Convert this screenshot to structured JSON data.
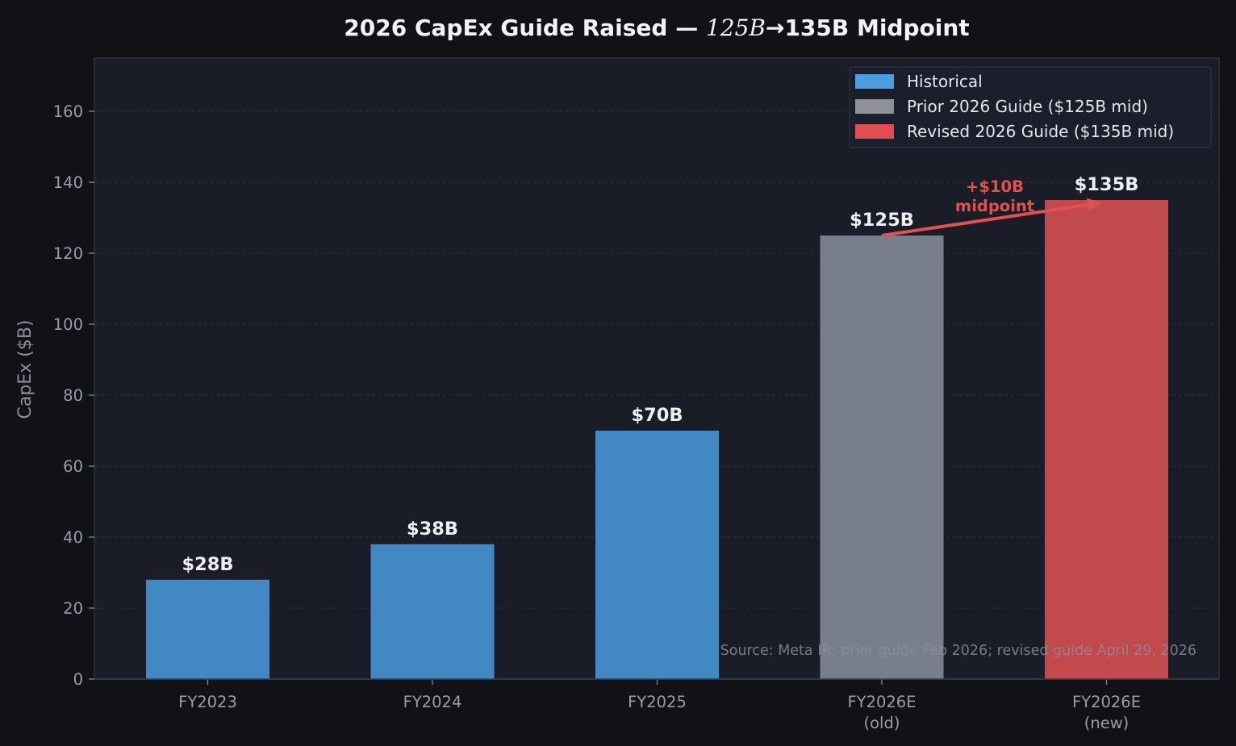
{
  "chart_data": {
    "type": "bar",
    "title": {
      "pre": "2026 CapEx Guide Raised — ",
      "math": "125B",
      "post": "→135B Midpoint"
    },
    "xlabel": "",
    "ylabel": "CapEx ($B)",
    "ylim": [
      0,
      175
    ],
    "yticks": [
      0,
      20,
      40,
      60,
      80,
      100,
      120,
      140,
      160
    ],
    "grid": "horizontal dashed",
    "legend_position": "top-right",
    "categories": [
      [
        "FY2023"
      ],
      [
        "FY2024"
      ],
      [
        "FY2025"
      ],
      [
        "FY2026E",
        "(old)"
      ],
      [
        "FY2026E",
        "(new)"
      ]
    ],
    "values": [
      28,
      38,
      70,
      125,
      135
    ],
    "value_labels": [
      "$28B",
      "$38B",
      "$70B",
      "$125B",
      "$135B"
    ],
    "bar_groups": [
      "historical",
      "historical",
      "historical",
      "prior",
      "revised"
    ],
    "legend": [
      {
        "key": "historical",
        "label": "Historical",
        "color": "#4b9fe0"
      },
      {
        "key": "prior",
        "label": "Prior 2026 Guide ($125B mid)",
        "color": "#8e909c"
      },
      {
        "key": "revised",
        "label": "Revised 2026 Guide ($135B mid)",
        "color": "#e04e50"
      }
    ],
    "bar_colors": {
      "historical": "#4289c4",
      "prior": "#787e8c",
      "revised": "#c24a4c"
    },
    "annotation": {
      "lines": [
        "+$10B",
        "midpoint"
      ],
      "from_value": 125,
      "to_value": 135,
      "color": "#e05151"
    },
    "source_note": "Source: Meta IR; prior guide Feb 2026; revised guide April 29, 2026"
  },
  "colors": {
    "page_background": "#111217",
    "plot_background": "#1a1d27",
    "axis": "#3a3d48",
    "grid": "#2a2d38"
  }
}
